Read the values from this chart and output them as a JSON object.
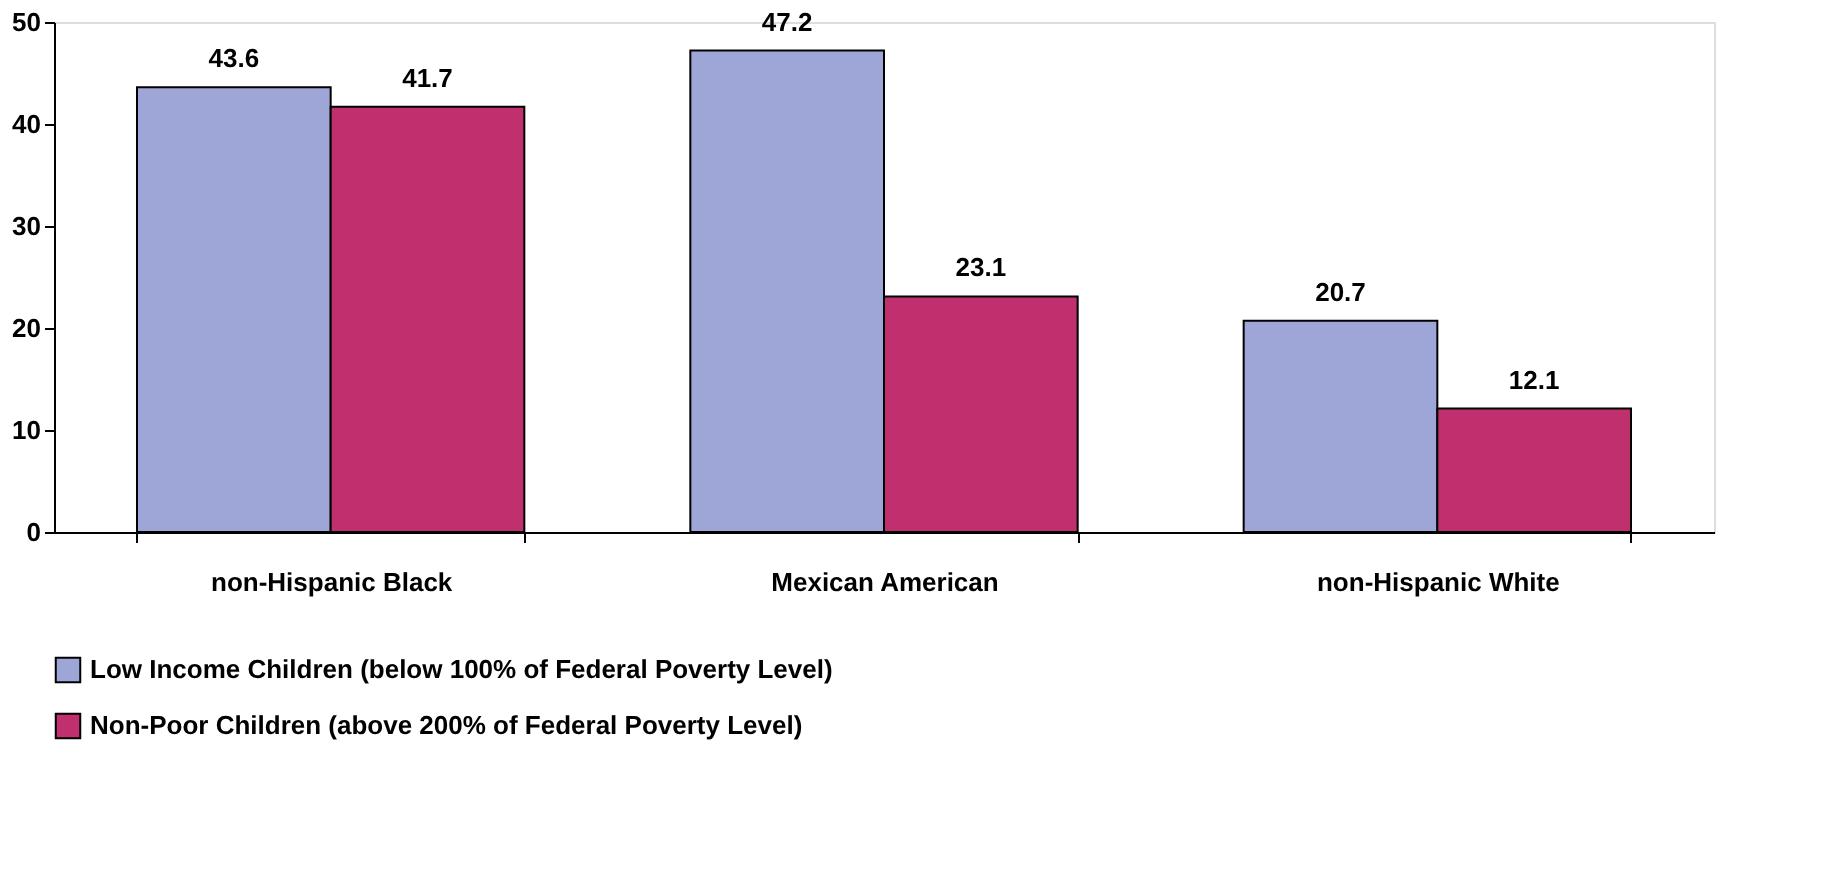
{
  "chart_data": {
    "type": "bar",
    "categories": [
      "non-Hispanic Black",
      "Mexican American",
      "non-Hispanic White"
    ],
    "series": [
      {
        "name": "Low Income Children (below 100% of Federal Poverty Level)",
        "color": "#9ea6d8",
        "values": [
          43.6,
          47.2,
          20.7
        ]
      },
      {
        "name": "Non-Poor Children (above 200% of Federal Poverty Level)",
        "color": "#c0306e",
        "values": [
          41.7,
          23.1,
          12.1
        ]
      }
    ],
    "ylim": [
      0,
      50
    ],
    "yticks": [
      0,
      10,
      20,
      30,
      40,
      50
    ],
    "grid": false,
    "legend": "bottom",
    "data_labels": true
  }
}
